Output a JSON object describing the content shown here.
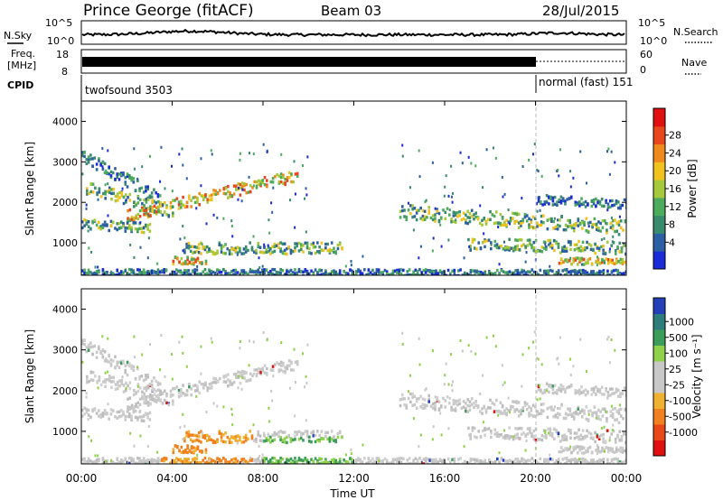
{
  "header": {
    "station": "Prince George (fitACF)",
    "beam": "Beam 03",
    "date": "28/Jul/2015"
  },
  "sky_panel": {
    "left_label": "N.Sky",
    "right_label": "N.Search",
    "ytick_top": "10^5",
    "ytick_bottom": "10^0",
    "ytick_top_right": "10^5",
    "ytick_bottom_right": "10^0"
  },
  "freq_panel": {
    "left_label_1": "Freq.",
    "left_label_2": "[MHz]",
    "ytick_top": "18",
    "ytick_bottom": "8",
    "right_label": "Nave",
    "rtick_top": "60",
    "rtick_bottom": "0"
  },
  "cpid_panel": {
    "label": "CPID",
    "mode_1": "twofsound 3503",
    "mode_2": "normal (fast) 151"
  },
  "chart_data": [
    {
      "type": "heatmap",
      "panel": "power",
      "ylabel": "Slant Range [km]",
      "yticks": [
        "1000",
        "2000",
        "3000",
        "4000"
      ],
      "ylim": [
        200,
        4500
      ],
      "xlim_hours": [
        0,
        24
      ],
      "colorbar_label": "Power [dB]",
      "colorbar_ticks": [
        "4",
        "8",
        "12",
        "16",
        "20",
        "24",
        "28"
      ],
      "colorbar_colors": [
        "#1b2bd8",
        "#2c5fa3",
        "#3a8a6e",
        "#4cab5c",
        "#a6c83c",
        "#f0c21e",
        "#f08a1c",
        "#e8461c",
        "#e01010"
      ]
    },
    {
      "type": "heatmap",
      "panel": "velocity",
      "ylabel": "Slant Range [km]",
      "yticks": [
        "1000",
        "2000",
        "3000",
        "4000"
      ],
      "ylim": [
        200,
        4500
      ],
      "xlim_hours": [
        0,
        24
      ],
      "colorbar_label": "Velocity [m s⁻¹]",
      "colorbar_ticks": [
        "1000",
        "500",
        "100",
        "25",
        "-25",
        "-100",
        "-500",
        "-1000"
      ],
      "colorbar_colors": [
        "#2440b8",
        "#2e7d7a",
        "#3a9e5a",
        "#8fd14a",
        "#c8c8c8",
        "#c8c8c8",
        "#f0b030",
        "#f08020",
        "#e84818",
        "#e01010"
      ]
    }
  ],
  "xaxis": {
    "title": "Time UT",
    "ticks": [
      "00:00",
      "04:00",
      "08:00",
      "12:00",
      "16:00",
      "20:00",
      "00:00"
    ]
  }
}
